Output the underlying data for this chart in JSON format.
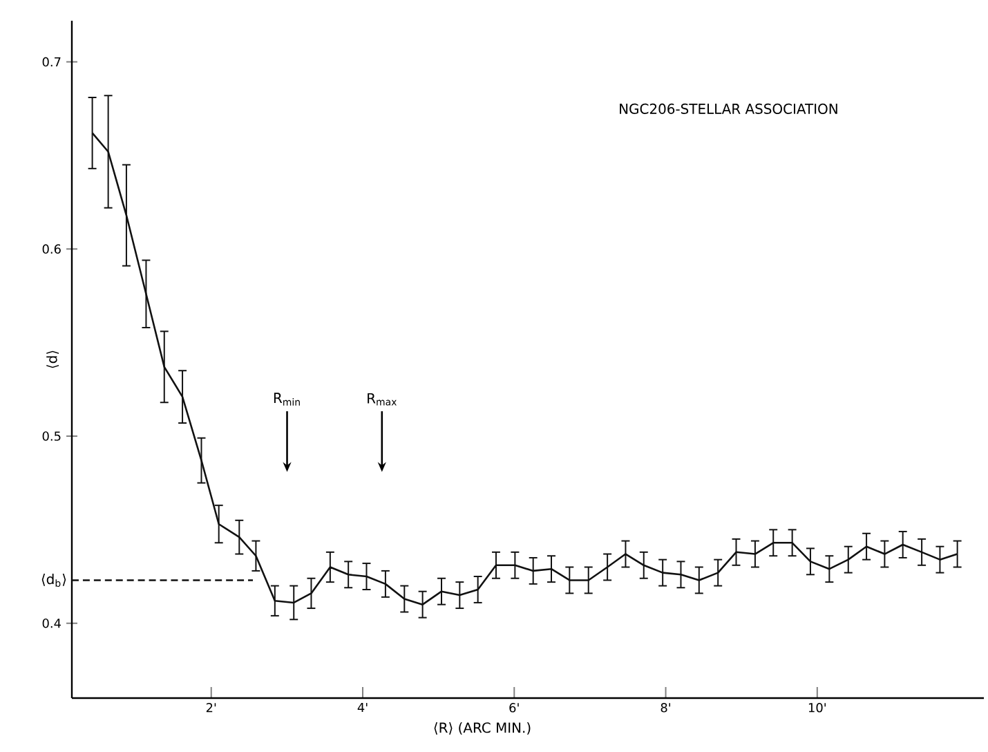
{
  "chart_data": {
    "type": "line",
    "title": "NGC206-STELLAR ASSOCIATION",
    "xlabel": "⟨R⟩  (ARC MIN.)",
    "ylabel": "⟨d⟩",
    "xlim": [
      0.16,
      12.2
    ],
    "ylim": [
      0.36,
      0.722
    ],
    "xticks": [
      {
        "value": 2,
        "label": "2'"
      },
      {
        "value": 4,
        "label": "4'"
      },
      {
        "value": 6,
        "label": "6'"
      },
      {
        "value": 8,
        "label": "8'"
      },
      {
        "value": 10,
        "label": "10'"
      }
    ],
    "yticks": [
      0.4,
      0.5,
      0.6,
      0.7
    ],
    "grid": false,
    "marker": "none",
    "series": [
      {
        "color": "#111111",
        "line_style": "solid",
        "x": [
          0.43,
          0.64,
          0.88,
          1.14,
          1.38,
          1.62,
          1.87,
          2.1,
          2.37,
          2.59,
          2.84,
          3.09,
          3.32,
          3.57,
          3.81,
          4.05,
          4.3,
          4.55,
          4.79,
          5.04,
          5.28,
          5.52,
          5.76,
          6.01,
          6.25,
          6.49,
          6.73,
          6.98,
          7.23,
          7.47,
          7.71,
          7.96,
          8.2,
          8.44,
          8.69,
          8.93,
          9.18,
          9.42,
          9.67,
          9.91,
          10.16,
          10.41,
          10.65,
          10.89,
          11.13,
          11.38,
          11.62,
          11.85
        ],
        "values": [
          0.662,
          0.652,
          0.618,
          0.576,
          0.537,
          0.521,
          0.487,
          0.453,
          0.446,
          0.436,
          0.412,
          0.411,
          0.416,
          0.43,
          0.426,
          0.425,
          0.421,
          0.413,
          0.41,
          0.417,
          0.415,
          0.418,
          0.431,
          0.431,
          0.428,
          0.429,
          0.423,
          0.423,
          0.43,
          0.437,
          0.431,
          0.427,
          0.426,
          0.423,
          0.427,
          0.438,
          0.437,
          0.443,
          0.443,
          0.433,
          0.429,
          0.434,
          0.441,
          0.437,
          0.442,
          0.438,
          0.434,
          0.437
        ],
        "errors": [
          0.019,
          0.03,
          0.027,
          0.018,
          0.019,
          0.014,
          0.012,
          0.01,
          0.009,
          0.008,
          0.008,
          0.009,
          0.008,
          0.008,
          0.007,
          0.007,
          0.007,
          0.007,
          0.007,
          0.007,
          0.007,
          0.007,
          0.007,
          0.007,
          0.007,
          0.007,
          0.007,
          0.007,
          0.007,
          0.007,
          0.007,
          0.007,
          0.007,
          0.007,
          0.007,
          0.007,
          0.007,
          0.007,
          0.007,
          0.007,
          0.007,
          0.007,
          0.007,
          0.007,
          0.007,
          0.007,
          0.007,
          0.007
        ]
      },
      {
        "name": "⟨d$_{b}$⟩",
        "color": "#111111",
        "line_style": "dashed",
        "x": [
          0.16,
          2.55
        ],
        "values": [
          0.423,
          0.423
        ]
      }
    ],
    "annotations": [
      "R$_{min}$",
      "R$_{max}$"
    ]
  }
}
